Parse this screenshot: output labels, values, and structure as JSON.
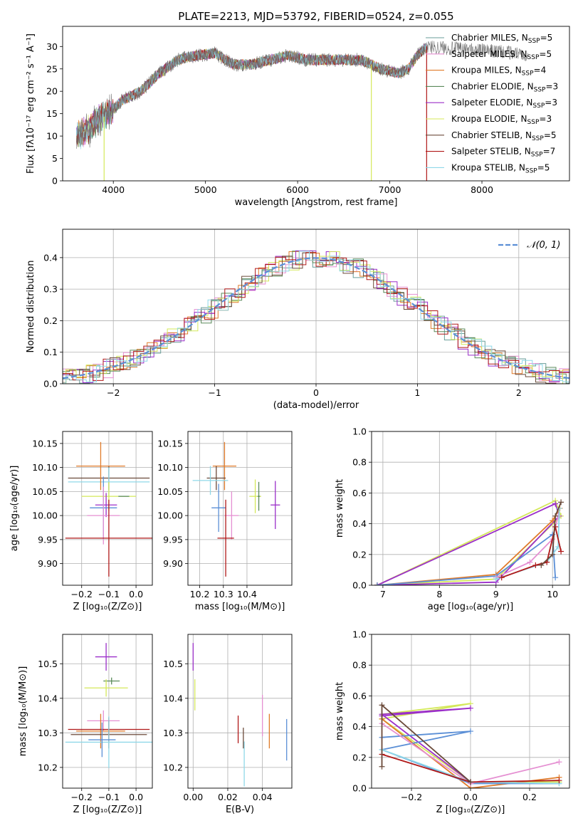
{
  "chart_data": [
    {
      "type": "line",
      "title": "PLATE=2213, MJD=53792, FIBERID=0524, z=0.055",
      "xlabel": "wavelength [Angstrom, rest frame]",
      "ylabel": "Flux [fλ10⁻¹⁷ erg cm⁻² s⁻¹ A⁻¹]",
      "xlim": [
        3450,
        8950
      ],
      "ylim": [
        0,
        34.5
      ],
      "xticks": [
        4000,
        5000,
        6000,
        7000,
        8000
      ],
      "yticks": [
        0,
        5,
        10,
        15,
        20,
        25,
        30
      ],
      "grid": false,
      "legend": "upper-right",
      "spectrum_model": {
        "x_range": [
          3600,
          7400
        ],
        "knots_x": [
          3600,
          3700,
          3800,
          3950,
          4100,
          4300,
          4500,
          4700,
          4900,
          5100,
          5300,
          5500,
          5700,
          5900,
          6100,
          6300,
          6500,
          6700,
          6900,
          7100,
          7200,
          7300,
          7400
        ],
        "knots_y": [
          10,
          11,
          13,
          15,
          18,
          20,
          24,
          27,
          28,
          28.5,
          26,
          26,
          27,
          28,
          27,
          27,
          27,
          27,
          25,
          24,
          25,
          28,
          30
        ]
      },
      "series": [
        {
          "name": "Chabrier MILES, N_SSP=5",
          "color": "#6a9e9a"
        },
        {
          "name": "Salpeter MILES, N_SSP=5",
          "color": "#e58fd2"
        },
        {
          "name": "Kroupa MILES, N_SSP=4",
          "color": "#e07b2a"
        },
        {
          "name": "Chabrier ELODIE, N_SSP=3",
          "color": "#5a8a5a"
        },
        {
          "name": "Salpeter ELODIE, N_SSP=3",
          "color": "#9b2fc9"
        },
        {
          "name": "Kroupa ELODIE, N_SSP=3",
          "color": "#d4e85a"
        },
        {
          "name": "Chabrier STELIB, N_SSP=5",
          "color": "#6b4a3a"
        },
        {
          "name": "Salpeter STELIB, N_SSP=7",
          "color": "#b01818"
        },
        {
          "name": "Kroupa STELIB, N_SSP=5",
          "color": "#8fd8e8"
        }
      ]
    },
    {
      "type": "line",
      "xlabel": "(data-model)/error",
      "ylabel": "Normed distribution",
      "xlim": [
        -2.5,
        2.5
      ],
      "ylim": [
        0,
        0.49
      ],
      "xticks": [
        -2,
        -1,
        0,
        1,
        2
      ],
      "yticks": [
        0.0,
        0.1,
        0.2,
        0.3,
        0.4
      ],
      "grid": true,
      "legend": "upper-right",
      "curve_name": "𝒩(0, 1)",
      "curve_color": "#5b8fd6",
      "hist_bin_width": 0.1,
      "hist_jitter": 0.03
    },
    {
      "type": "scatter",
      "xlabel": "Z [log₁₀(Z/Z⊙)]",
      "ylabel": "age  [log₁₀(age/yr)]",
      "xlim": [
        -0.27,
        0.06
      ],
      "ylim": [
        9.855,
        10.175
      ],
      "xticks": [
        -0.2,
        -0.1,
        0.0
      ],
      "yticks": [
        9.9,
        9.95,
        10.0,
        10.05,
        10.1,
        10.15
      ],
      "grid": true,
      "points": [
        {
          "x": -0.1,
          "y": 10.078,
          "xerr": 0.15,
          "yerr": 0.025,
          "color": "#6b4a3a"
        },
        {
          "x": -0.1,
          "y": 10.07,
          "xerr": 0.15,
          "yerr": 0.03,
          "color": "#8fd8e8"
        },
        {
          "x": -0.13,
          "y": 10.103,
          "xerr": 0.09,
          "yerr": 0.05,
          "color": "#e07b2a"
        },
        {
          "x": -0.1,
          "y": 10.04,
          "xerr": 0.1,
          "yerr": 0.03,
          "color": "#d4e85a"
        },
        {
          "x": -0.11,
          "y": 10.022,
          "xerr": 0.04,
          "yerr": 0.025,
          "color": "#9b2fc9"
        },
        {
          "x": -0.12,
          "y": 10.016,
          "xerr": 0.05,
          "yerr": 0.065,
          "color": "#5b8fd6"
        },
        {
          "x": -0.12,
          "y": 10.0,
          "xerr": 0.06,
          "yerr": 0.06,
          "color": "#e58fd2"
        },
        {
          "x": -0.1,
          "y": 9.953,
          "xerr": 0.16,
          "yerr": 0.08,
          "color": "#b01818"
        },
        {
          "x": -0.045,
          "y": 10.04,
          "xerr": 0.02,
          "yerr": 0.0,
          "color": "#5a8a5a"
        }
      ]
    },
    {
      "type": "scatter",
      "xlabel": "mass [log₁₀(M/M⊙)]",
      "xlim": [
        10.15,
        10.59
      ],
      "ylim": [
        9.855,
        10.175
      ],
      "xticks": [
        10.2,
        10.3,
        10.4
      ],
      "yticks": [
        9.9,
        9.95,
        10.0,
        10.05,
        10.1,
        10.15
      ],
      "grid": true,
      "points": [
        {
          "x": 10.305,
          "y": 10.103,
          "xerr": 0.05,
          "yerr": 0.05,
          "color": "#e07b2a"
        },
        {
          "x": 10.27,
          "y": 10.078,
          "xerr": 0.04,
          "yerr": 0.025,
          "color": "#6b4a3a"
        },
        {
          "x": 10.245,
          "y": 10.073,
          "xerr": 0.075,
          "yerr": 0.03,
          "color": "#8fd8e8"
        },
        {
          "x": 10.28,
          "y": 10.016,
          "xerr": 0.03,
          "yerr": 0.05,
          "color": "#5b8fd6"
        },
        {
          "x": 10.335,
          "y": 10.0,
          "xerr": 0.03,
          "yerr": 0.05,
          "color": "#e58fd2"
        },
        {
          "x": 10.435,
          "y": 10.04,
          "xerr": 0.025,
          "yerr": 0.035,
          "color": "#d4e85a"
        },
        {
          "x": 10.45,
          "y": 10.04,
          "xerr": 0.005,
          "yerr": 0.03,
          "color": "#5a8a5a"
        },
        {
          "x": 10.52,
          "y": 10.022,
          "xerr": 0.02,
          "yerr": 0.05,
          "color": "#9b2fc9"
        },
        {
          "x": 10.31,
          "y": 9.953,
          "xerr": 0.035,
          "yerr": 0.08,
          "color": "#b01818"
        }
      ]
    },
    {
      "type": "line",
      "xlabel": "age  [log₁₀(age/yr)]",
      "ylabel": "mass weight",
      "xlim": [
        6.8,
        10.3
      ],
      "ylim": [
        0,
        1.0
      ],
      "xticks": [
        7,
        8,
        9,
        10
      ],
      "yticks": [
        0.0,
        0.2,
        0.4,
        0.6,
        0.8,
        1.0
      ],
      "grid": true,
      "series": [
        {
          "color": "#d4e85a",
          "x": [
            6.9,
            10.05,
            10.15,
            9.0,
            6.9
          ],
          "y": [
            0.0,
            0.55,
            0.45,
            0.04,
            0.0
          ]
        },
        {
          "color": "#9b2fc9",
          "x": [
            6.9,
            10.05,
            10.12,
            9.0,
            6.9
          ],
          "y": [
            0.0,
            0.53,
            0.45,
            0.02,
            0.0
          ]
        },
        {
          "color": "#e07b2a",
          "x": [
            6.9,
            9.0,
            10.0,
            10.13
          ],
          "y": [
            0.0,
            0.07,
            0.42,
            0.5
          ]
        },
        {
          "color": "#5b8fd6",
          "x": [
            6.9,
            9.0,
            10.0,
            10.05
          ],
          "y": [
            0.0,
            0.06,
            0.33,
            0.05
          ]
        },
        {
          "color": "#e58fd2",
          "x": [
            9.0,
            9.6,
            10.0,
            10.1
          ],
          "y": [
            0.05,
            0.15,
            0.3,
            0.45
          ]
        },
        {
          "color": "#8fd8e8",
          "x": [
            9.0,
            9.9,
            10.1,
            10.12
          ],
          "y": [
            0.04,
            0.15,
            0.25,
            0.5
          ]
        },
        {
          "color": "#b01818",
          "x": [
            9.1,
            9.7,
            9.9,
            10.05,
            10.15
          ],
          "y": [
            0.05,
            0.13,
            0.15,
            0.38,
            0.22
          ]
        },
        {
          "color": "#6b4a3a",
          "x": [
            9.8,
            10.0,
            10.05,
            10.15
          ],
          "y": [
            0.13,
            0.2,
            0.45,
            0.54
          ]
        }
      ]
    },
    {
      "type": "scatter",
      "xlabel": "Z [log₁₀(Z/Z⊙)]",
      "ylabel": "mass [log₁₀(M/M⊙)]",
      "xlim": [
        -0.27,
        0.06
      ],
      "ylim": [
        10.14,
        10.585
      ],
      "xticks": [
        -0.2,
        -0.1,
        0.0
      ],
      "yticks": [
        10.2,
        10.3,
        10.4,
        10.5
      ],
      "grid": true,
      "points": [
        {
          "x": -0.11,
          "y": 10.52,
          "xerr": 0.04,
          "yerr": 0.04,
          "color": "#9b2fc9"
        },
        {
          "x": -0.09,
          "y": 10.45,
          "xerr": 0.03,
          "yerr": 0.01,
          "color": "#5a8a5a"
        },
        {
          "x": -0.11,
          "y": 10.43,
          "xerr": 0.08,
          "yerr": 0.025,
          "color": "#d4e85a"
        },
        {
          "x": -0.12,
          "y": 10.335,
          "xerr": 0.06,
          "yerr": 0.03,
          "color": "#e58fd2"
        },
        {
          "x": -0.13,
          "y": 10.305,
          "xerr": 0.09,
          "yerr": 0.05,
          "color": "#e07b2a"
        },
        {
          "x": -0.1,
          "y": 10.31,
          "xerr": 0.15,
          "yerr": 0.035,
          "color": "#b01818"
        },
        {
          "x": -0.1,
          "y": 10.295,
          "xerr": 0.14,
          "yerr": 0.04,
          "color": "#6b4a3a"
        },
        {
          "x": -0.1,
          "y": 10.273,
          "xerr": 0.16,
          "yerr": 0.075,
          "color": "#8fd8e8"
        },
        {
          "x": -0.125,
          "y": 10.28,
          "xerr": 0.05,
          "yerr": 0.05,
          "color": "#5b8fd6"
        }
      ]
    },
    {
      "type": "scatter",
      "xlabel": "E(B-V)",
      "xlim": [
        -0.003,
        0.057
      ],
      "ylim": [
        10.14,
        10.585
      ],
      "xticks": [
        0.0,
        0.02,
        0.04
      ],
      "yticks": [
        10.2,
        10.3,
        10.4,
        10.5
      ],
      "grid": true,
      "points": [
        {
          "x": 0.0,
          "y": 10.52,
          "yerr": 0.04,
          "color": "#9b2fc9"
        },
        {
          "x": 0.001,
          "y": 10.41,
          "yerr": 0.045,
          "color": "#d4e85a"
        },
        {
          "x": 0.026,
          "y": 10.31,
          "yerr": 0.04,
          "color": "#b01818"
        },
        {
          "x": 0.029,
          "y": 10.285,
          "yerr": 0.03,
          "color": "#6b4a3a"
        },
        {
          "x": 0.0295,
          "y": 10.21,
          "yerr": 0.065,
          "color": "#8fd8e8"
        },
        {
          "x": 0.04,
          "y": 10.35,
          "yerr": 0.06,
          "color": "#e58fd2"
        },
        {
          "x": 0.044,
          "y": 10.305,
          "yerr": 0.05,
          "color": "#e07b2a"
        },
        {
          "x": 0.054,
          "y": 10.28,
          "yerr": 0.06,
          "color": "#5b8fd6"
        }
      ]
    },
    {
      "type": "line",
      "xlabel": "Z [log₁₀(Z/Z⊙)]",
      "ylabel": "mass weight",
      "xlim": [
        -0.335,
        0.335
      ],
      "ylim": [
        0,
        1.0
      ],
      "xticks": [
        -0.2,
        0.0,
        0.2
      ],
      "yticks": [
        0.0,
        0.2,
        0.4,
        0.6,
        0.8,
        1.0
      ],
      "grid": true,
      "series": [
        {
          "color": "#d4e85a",
          "x": [
            -0.3,
            0.0,
            -0.3,
            0.0,
            0.3
          ],
          "y": [
            0.48,
            0.55,
            0.45,
            0.04,
            0.04
          ]
        },
        {
          "color": "#9b2fc9",
          "x": [
            -0.3,
            0.0,
            -0.3,
            0.0
          ],
          "y": [
            0.47,
            0.52,
            0.48,
            0.04
          ]
        },
        {
          "color": "#e07b2a",
          "x": [
            -0.3,
            0.0,
            0.3
          ],
          "y": [
            0.45,
            0.0,
            0.07
          ]
        },
        {
          "color": "#5b8fd6",
          "x": [
            -0.3,
            0.0,
            -0.3,
            0.0,
            0.3
          ],
          "y": [
            0.33,
            0.37,
            0.25,
            0.03,
            0.03
          ]
        },
        {
          "color": "#e58fd2",
          "x": [
            -0.3,
            0.0,
            0.3
          ],
          "y": [
            0.42,
            0.03,
            0.17
          ]
        },
        {
          "color": "#8fd8e8",
          "x": [
            -0.3,
            0.0,
            0.3
          ],
          "y": [
            0.25,
            0.04,
            0.03
          ]
        },
        {
          "color": "#b01818",
          "x": [
            -0.3,
            0.0,
            0.3
          ],
          "y": [
            0.22,
            0.04,
            0.05
          ]
        },
        {
          "color": "#6b4a3a",
          "x": [
            -0.3,
            -0.3,
            0.0
          ],
          "y": [
            0.14,
            0.54,
            0.04
          ]
        }
      ]
    }
  ]
}
